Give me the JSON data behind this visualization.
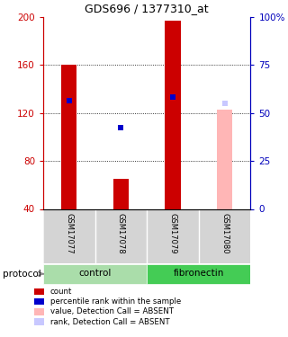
{
  "title": "GDS696 / 1377310_at",
  "samples": [
    "GSM17077",
    "GSM17078",
    "GSM17079",
    "GSM17080"
  ],
  "bar_values": [
    160,
    65,
    197,
    null
  ],
  "bar_color": "#cc0000",
  "rank_values": [
    130,
    108,
    133,
    null
  ],
  "rank_color": "#0000cc",
  "absent_bar_value": [
    null,
    null,
    null,
    123
  ],
  "absent_bar_color": "#ffb6b6",
  "absent_rank_value": [
    null,
    null,
    null,
    128
  ],
  "absent_rank_color": "#c8c8ff",
  "ylim_left": [
    40,
    200
  ],
  "ylim_right": [
    0,
    100
  ],
  "yticks_left": [
    40,
    80,
    120,
    160,
    200
  ],
  "yticks_right": [
    0,
    25,
    50,
    75,
    100
  ],
  "ytick_labels_right": [
    "0",
    "25",
    "50",
    "75",
    "100%"
  ],
  "left_axis_color": "#cc0000",
  "right_axis_color": "#0000bb",
  "grid_lines": [
    80,
    120,
    160
  ],
  "bar_width": 0.3,
  "group_info": [
    {
      "label": "control",
      "color": "#aaddaa",
      "samples": [
        0,
        1
      ]
    },
    {
      "label": "fibronectin",
      "color": "#44cc55",
      "samples": [
        2,
        3
      ]
    }
  ],
  "legend_items": [
    {
      "color": "#cc0000",
      "label": "count"
    },
    {
      "color": "#0000cc",
      "label": "percentile rank within the sample"
    },
    {
      "color": "#ffb6b6",
      "label": "value, Detection Call = ABSENT"
    },
    {
      "color": "#c8c8ff",
      "label": "rank, Detection Call = ABSENT"
    }
  ],
  "protocol_label": "protocol"
}
